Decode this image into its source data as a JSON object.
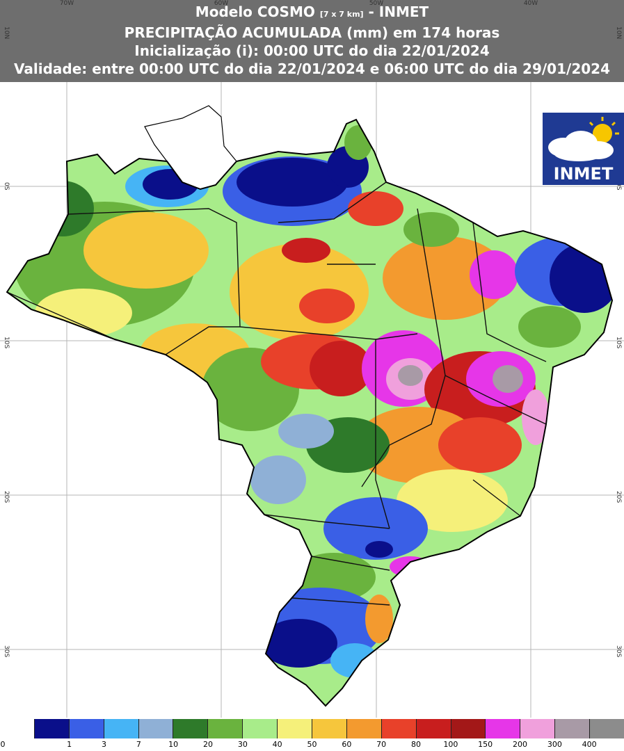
{
  "header": {
    "line1_a": "Modelo COSMO ",
    "line1_small": "[7 x 7 km]",
    "line1_b": " - INMET",
    "line2": "PRECIPITAÇÃO ACUMULADA (mm) em 174 horas",
    "line3": "Inicialização (i): 00:00 UTC do dia 22/01/2024",
    "line4": "Validade: entre 00:00 UTC do dia 22/01/2024 e 06:00 UTC do dia 29/01/2024"
  },
  "grid": {
    "lon_labels": [
      "70W",
      "60W",
      "50W",
      "40W"
    ],
    "lat_labels_left": [
      "10N",
      "0S",
      "10S",
      "20S",
      "30S"
    ],
    "lat_labels_right": [
      "10N",
      "0S",
      "10S",
      "20S",
      "30S"
    ]
  },
  "logo": {
    "text": "INMET",
    "icon": "cloud-sun-icon"
  },
  "colorbar": {
    "colors": [
      "#ffffff",
      "#0a0f8a",
      "#3a5fe6",
      "#46b4f5",
      "#8fb0d6",
      "#2e7a2a",
      "#6ab33e",
      "#a8ec8a",
      "#f5f07a",
      "#f6c63c",
      "#f39a2f",
      "#e8412a",
      "#c81e1e",
      "#a31818",
      "#e636e8",
      "#f0a0dc",
      "#a89aa6",
      "#8c8c8c"
    ],
    "labels": [
      "0",
      "1",
      "3",
      "7",
      "10",
      "20",
      "30",
      "40",
      "50",
      "60",
      "70",
      "80",
      "100",
      "150",
      "200",
      "300",
      "400"
    ]
  }
}
